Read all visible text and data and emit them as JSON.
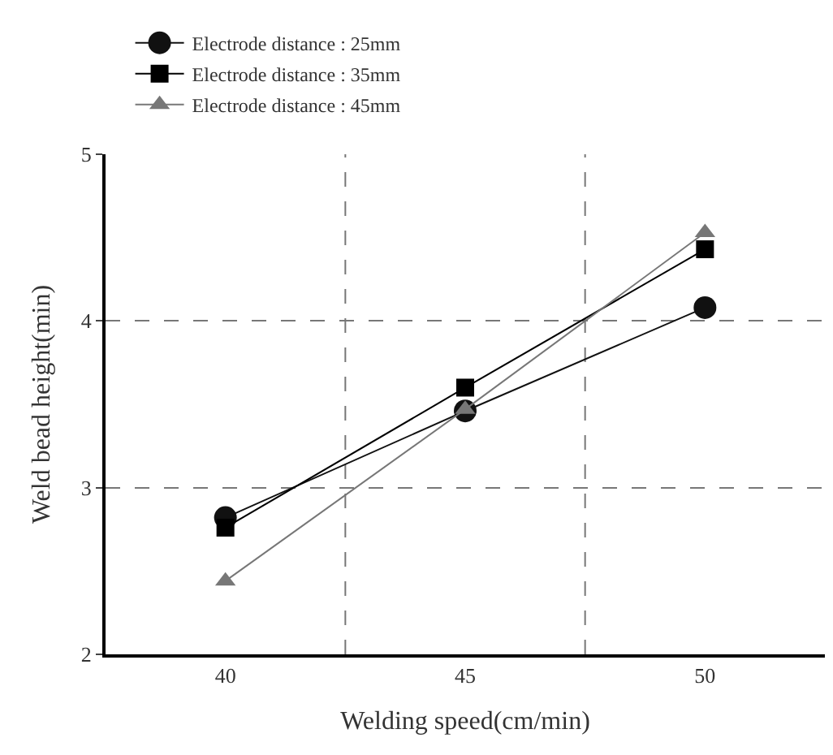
{
  "chart_data": {
    "type": "line",
    "xlabel": "Welding speed(cm/min)",
    "ylabel": "Weld bead height(min)",
    "categories": [
      "40",
      "45",
      "50"
    ],
    "series": [
      {
        "name": "Electrode distance : 25mm",
        "color": "#111111",
        "marker": "circle",
        "values": [
          2.82,
          3.46,
          4.08
        ]
      },
      {
        "name": "Electrode distance : 35mm",
        "color": "#000000",
        "marker": "square",
        "values": [
          2.76,
          3.6,
          4.43
        ]
      },
      {
        "name": "Electrode distance : 45mm",
        "color": "#777777",
        "marker": "triangle",
        "values": [
          2.44,
          3.47,
          4.53
        ]
      }
    ],
    "ylim": [
      2,
      5
    ],
    "yticks": [
      2,
      3,
      4,
      5
    ],
    "grid": true,
    "legend": "top left",
    "line_style": "solid"
  }
}
